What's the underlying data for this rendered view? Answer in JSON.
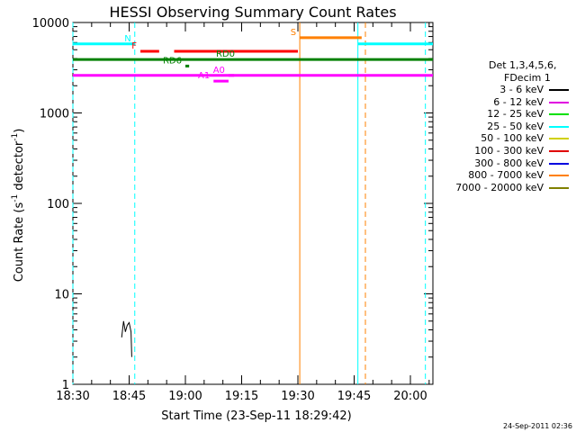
{
  "chart_data": {
    "type": "line",
    "title": "HESSI Observing Summary Count Rates",
    "xlabel": "Start Time (23-Sep-11 18:29:42)",
    "ylabel": "Count Rate (s",
    "ylabel_sup1": "-1",
    "ylabel_mid": " detector",
    "ylabel_sup2": "-1",
    "ylabel_end": ")",
    "x_unit": "minutes after 18:30",
    "xlim": [
      0,
      96
    ],
    "ylim": [
      1,
      10000
    ],
    "yscale": "log",
    "xticks": [
      {
        "v": 0,
        "label": "18:30"
      },
      {
        "v": 15,
        "label": "18:45"
      },
      {
        "v": 30,
        "label": "19:00"
      },
      {
        "v": 45,
        "label": "19:15"
      },
      {
        "v": 60,
        "label": "19:30"
      },
      {
        "v": 75,
        "label": "19:45"
      },
      {
        "v": 90,
        "label": "20:00"
      }
    ],
    "yticks": [
      {
        "v": 1,
        "label": "1"
      },
      {
        "v": 10,
        "label": "10"
      },
      {
        "v": 100,
        "label": "100"
      },
      {
        "v": 1000,
        "label": "1000"
      },
      {
        "v": 10000,
        "label": "10000"
      }
    ],
    "legend_title": [
      "Det 1,3,4,5,6,",
      "FDecim 1"
    ],
    "series": [
      {
        "name": "3 - 6 keV",
        "color": "#000000",
        "points": [
          [
            13,
            3.3
          ],
          [
            13.5,
            5
          ],
          [
            14,
            3.8
          ],
          [
            14.5,
            4.5
          ],
          [
            15,
            4.8
          ],
          [
            15.5,
            3.8
          ],
          [
            15.7,
            2
          ]
        ]
      },
      {
        "name": "6 - 12 keV",
        "color": "#e000e0",
        "points": []
      },
      {
        "name": "12 - 25 keV",
        "color": "#00e000",
        "points": []
      },
      {
        "name": "25 - 50 keV",
        "color": "#00ffff",
        "points": []
      },
      {
        "name": "50 - 100 keV",
        "color": "#d0d000",
        "points": []
      },
      {
        "name": "100 - 300 keV",
        "color": "#e00000",
        "points": []
      },
      {
        "name": "300 - 800 keV",
        "color": "#0000e0",
        "points": []
      },
      {
        "name": "800 - 7000 keV",
        "color": "#ff8000",
        "points": []
      },
      {
        "name": "7000 - 20000 keV",
        "color": "#808000",
        "points": []
      }
    ],
    "flag_bars": [
      {
        "label": "N",
        "color": "#00ffff",
        "y": 5800,
        "segments": [
          [
            0,
            16.5
          ],
          [
            76,
            96
          ]
        ]
      },
      {
        "label": "S",
        "color": "#ff8000",
        "y": 6800,
        "segments": [
          [
            60.5,
            77
          ]
        ]
      },
      {
        "label": "F",
        "color": "#ff0000",
        "y": 4800,
        "segments": [
          [
            18,
            23
          ],
          [
            27,
            60
          ]
        ]
      },
      {
        "label": "RD0",
        "color": "#008000",
        "y": 3900,
        "segments": [
          [
            0,
            96
          ]
        ]
      },
      {
        "label": "RD6",
        "color": "#008000",
        "y": 3300,
        "segments": [
          [
            30,
            31
          ]
        ]
      },
      {
        "label": "",
        "color": "#ff00ff",
        "y": 2600,
        "segments": [
          [
            0,
            96
          ]
        ]
      },
      {
        "label": "A1",
        "color": "#ff00ff",
        "y": 2250,
        "segments": [
          [
            37.5,
            41.5
          ]
        ]
      },
      {
        "label": "A0",
        "color": "#ff00ff",
        "y": 2600,
        "segments": [
          [
            41.5,
            43
          ]
        ]
      }
    ],
    "vertical_markers": [
      {
        "x": 0,
        "color": "#00ffff",
        "style": "dashed"
      },
      {
        "x": 16.5,
        "color": "#00ffff",
        "style": "dashed"
      },
      {
        "x": 76,
        "color": "#00ffff",
        "style": "solid"
      },
      {
        "x": 78,
        "color": "#ff8000",
        "style": "dashed"
      },
      {
        "x": 60.5,
        "color": "#ff8000",
        "style": "solid"
      },
      {
        "x": 94,
        "color": "#00ffff",
        "style": "dashed"
      }
    ]
  },
  "footer": "24-Sep-2011 02:36"
}
